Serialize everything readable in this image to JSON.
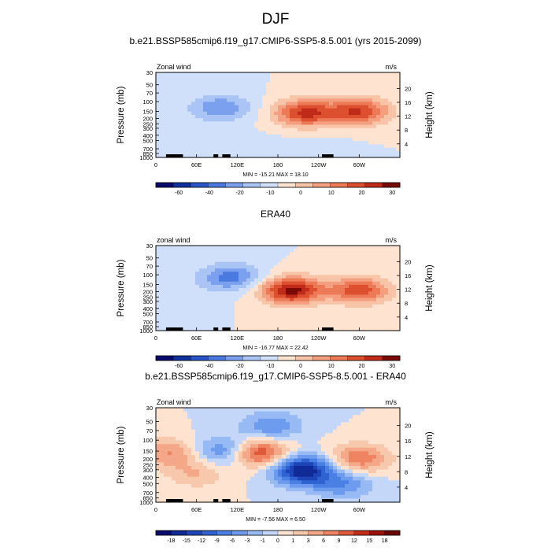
{
  "figure_title": "DJF",
  "chart_data": [
    {
      "type": "heatmap",
      "title": "b.e21.BSSP585cmip6.f19_g17.CMIP6-SSP5-8.5.001 (yrs 2015-2099)",
      "left_label": "Zonal wind",
      "units": "m/s",
      "ylabel": "Pressure (mb)",
      "ylabel_right": "Height (km)",
      "pressure_ticks": [
        "30",
        "50",
        "70",
        "100",
        "150",
        "200",
        "250",
        "300",
        "400",
        "500",
        "700",
        "850",
        "1000"
      ],
      "height_ticks": [
        "4",
        "8",
        "12",
        "16",
        "20"
      ],
      "lon_ticks": [
        "0",
        "60E",
        "120E",
        "180",
        "120W",
        "60W"
      ],
      "stats": "MIN = -15.21  MAX = 18.10",
      "colorbar_labels": [
        "-60",
        "-40",
        "-20",
        "-10",
        "0",
        "10",
        "20",
        "30"
      ],
      "colorbar_colors": [
        "#0a0a6e",
        "#1030a0",
        "#2a55c8",
        "#4a7ae0",
        "#7aa0ee",
        "#a9c4f5",
        "#d0e0fa",
        "#fde3d0",
        "#f8c4a8",
        "#f4a080",
        "#ec7a57",
        "#dc5030",
        "#c02a18",
        "#7a0a06"
      ],
      "blobs": [
        {
          "lon": 95,
          "p": 130,
          "val": -10
        },
        {
          "lon": 220,
          "p": 160,
          "val": 18
        },
        {
          "lon": 300,
          "p": 150,
          "val": 17
        },
        {
          "lon": 230,
          "p": 800,
          "val": -3
        },
        {
          "lon": 130,
          "p": 700,
          "val": -2
        }
      ]
    },
    {
      "type": "heatmap",
      "title": "ERA40",
      "left_label": "zonal wind",
      "units": "m/s",
      "ylabel": "Pressure (mb)",
      "ylabel_right": "Height (km)",
      "pressure_ticks": [
        "30",
        "50",
        "70",
        "100",
        "150",
        "200",
        "250",
        "300",
        "400",
        "500",
        "700",
        "850",
        "1000"
      ],
      "height_ticks": [
        "4",
        "8",
        "12",
        "16",
        "20"
      ],
      "lon_ticks": [
        "0",
        "60E",
        "120E",
        "180",
        "120W",
        "60W"
      ],
      "stats": "MIN = -16.77  MAX = 22.42",
      "colorbar_labels": [
        "-60",
        "-40",
        "-20",
        "-10",
        "0",
        "10",
        "20",
        "30"
      ],
      "colorbar_colors": [
        "#0a0a6e",
        "#1030a0",
        "#2a55c8",
        "#4a7ae0",
        "#7aa0ee",
        "#a9c4f5",
        "#d0e0fa",
        "#fde3d0",
        "#f8c4a8",
        "#f4a080",
        "#ec7a57",
        "#dc5030",
        "#c02a18",
        "#7a0a06"
      ],
      "blobs": [
        {
          "lon": 110,
          "p": 110,
          "val": -12
        },
        {
          "lon": 200,
          "p": 190,
          "val": 22
        },
        {
          "lon": 300,
          "p": 190,
          "val": 16
        },
        {
          "lon": 30,
          "p": 250,
          "val": -3
        }
      ]
    },
    {
      "type": "heatmap",
      "title": "b.e21.BSSP585cmip6.f19_g17.CMIP6-SSP5-8.5.001 - ERA40",
      "left_label": "Zonal wind",
      "units": "m/s",
      "ylabel": "Pressure (mb)",
      "ylabel_right": "Height (km)",
      "pressure_ticks": [
        "30",
        "50",
        "70",
        "100",
        "150",
        "200",
        "250",
        "300",
        "400",
        "500",
        "700",
        "850",
        "1000"
      ],
      "height_ticks": [
        "4",
        "8",
        "12",
        "16",
        "20"
      ],
      "lon_ticks": [
        "0",
        "60E",
        "120E",
        "180",
        "120W",
        "60W"
      ],
      "stats": "MIN = -7.56  MAX = 6.50",
      "colorbar_labels": [
        "-18",
        "-15",
        "-12",
        "-9",
        "-6",
        "-3",
        "-1",
        "0",
        "1",
        "3",
        "6",
        "9",
        "12",
        "15",
        "18"
      ],
      "colorbar_colors": [
        "#0a0a6e",
        "#102a96",
        "#1d45b8",
        "#2f63d2",
        "#4a80e4",
        "#6d9cee",
        "#97baf4",
        "#c4d7f8",
        "#fde3d0",
        "#f8c8ac",
        "#f4a888",
        "#ee8462",
        "#e05a3a",
        "#c42c1a",
        "#9c1208",
        "#6a0604"
      ],
      "blobs": [
        {
          "lon": 215,
          "p": 300,
          "val": -7
        },
        {
          "lon": 170,
          "p": 60,
          "val": -3
        },
        {
          "lon": 150,
          "p": 160,
          "val": 6
        },
        {
          "lon": 20,
          "p": 160,
          "val": 3
        },
        {
          "lon": 105,
          "p": 150,
          "val": -4
        },
        {
          "lon": 300,
          "p": 200,
          "val": 4
        },
        {
          "lon": 275,
          "p": 500,
          "val": -3
        },
        {
          "lon": 60,
          "p": 350,
          "val": 2
        }
      ]
    }
  ]
}
